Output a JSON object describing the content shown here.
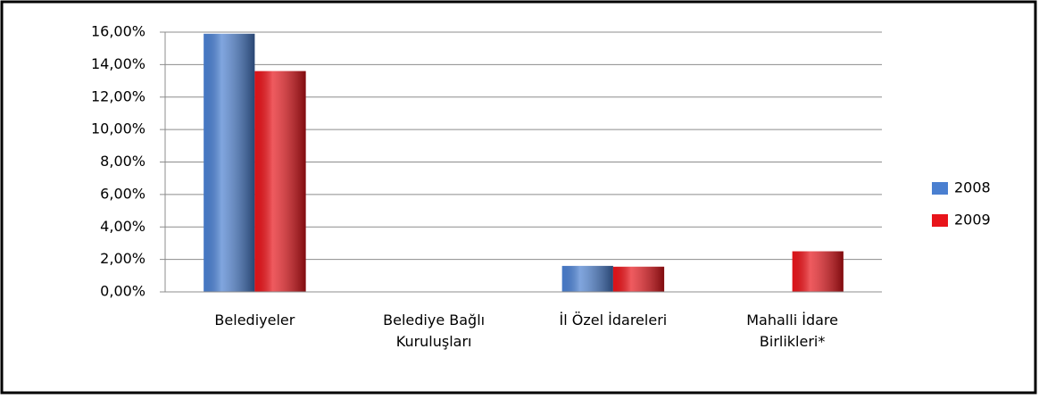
{
  "chart_data": {
    "type": "bar",
    "categories": [
      "Belediyeler",
      "Belediye Bağlı Kuruluşları",
      "İl Özel İdareleri",
      "Mahalli İdare Birlikleri*"
    ],
    "series": [
      {
        "name": "2008",
        "color": "#4a7fd0",
        "values": [
          15.9,
          null,
          1.6,
          null
        ]
      },
      {
        "name": "2009",
        "color": "#e8141a",
        "values": [
          13.6,
          null,
          1.55,
          2.5
        ]
      }
    ],
    "ylim": [
      0,
      16
    ],
    "yticks": [
      {
        "value": 0,
        "label": "0,00%"
      },
      {
        "value": 2,
        "label": "2,00%"
      },
      {
        "value": 4,
        "label": "4,00%"
      },
      {
        "value": 6,
        "label": "6,00%"
      },
      {
        "value": 8,
        "label": "8,00%"
      },
      {
        "value": 10,
        "label": "10,00%"
      },
      {
        "value": 12,
        "label": "12,00%"
      },
      {
        "value": 14,
        "label": "14,00%"
      },
      {
        "value": 16,
        "label": "16,00%"
      }
    ],
    "grid": true,
    "legend": "right"
  }
}
